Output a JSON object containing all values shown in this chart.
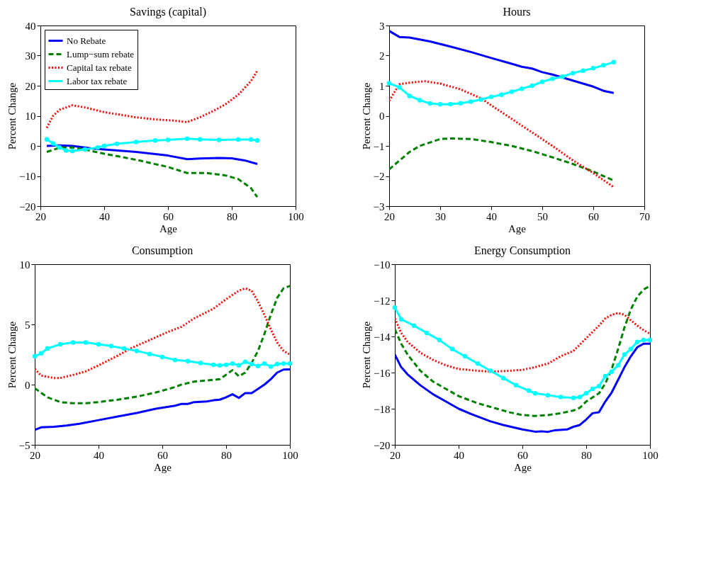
{
  "chart_data": [
    {
      "type": "line",
      "title": "Savings (capital)",
      "xlabel": "Age",
      "ylabel": "Percent Change",
      "xlim": [
        20,
        100
      ],
      "xticks": [
        20,
        40,
        60,
        80,
        100
      ],
      "ylim": [
        -20,
        40
      ],
      "yticks": [
        -20,
        -10,
        0,
        10,
        20,
        30,
        40
      ],
      "grid": false,
      "legend": "top left",
      "series": [
        {
          "name": "No Rebate",
          "color": "#0000ff",
          "line_style": "solid",
          "marker": "none",
          "x": [
            22,
            26,
            30,
            36,
            40,
            50,
            60,
            66,
            70,
            76,
            80,
            84,
            88
          ],
          "values": [
            0,
            0.2,
            0,
            -0.8,
            -1.2,
            -2,
            -3.2,
            -4.4,
            -4.2,
            -4,
            -4.1,
            -4.8,
            -6
          ]
        },
        {
          "name": "Lump−sum rebate",
          "color": "#008000",
          "line_style": "dashed",
          "marker": "none",
          "x": [
            22,
            26,
            30,
            34,
            40,
            50,
            60,
            66,
            72,
            78,
            82,
            86,
            88
          ],
          "values": [
            -2,
            -0.6,
            -0.5,
            -1.2,
            -2.6,
            -4.6,
            -7,
            -9,
            -9,
            -9.8,
            -11,
            -14,
            -17
          ]
        },
        {
          "name": "Capital tax rebate",
          "color": "#ff0000",
          "line_style": "dotted",
          "marker": "none",
          "x": [
            22,
            24,
            26,
            30,
            34,
            40,
            46,
            50,
            56,
            62,
            66,
            70,
            74,
            78,
            82,
            86,
            88
          ],
          "values": [
            6,
            10,
            12,
            13.5,
            12.8,
            11.2,
            10.2,
            9.5,
            8.8,
            8.4,
            7.9,
            9.5,
            11.5,
            13.8,
            17,
            21.5,
            25
          ]
        },
        {
          "name": "Labor tax rebate",
          "color": "#00ffff",
          "line_style": "solid",
          "marker": "circle",
          "x": [
            22,
            24,
            26,
            28,
            30,
            34,
            38,
            40,
            44,
            50,
            56,
            60,
            66,
            70,
            76,
            82,
            86,
            88
          ],
          "values": [
            2.2,
            0.8,
            -0.5,
            -1.5,
            -1.7,
            -1.2,
            -0.5,
            0,
            0.7,
            1.3,
            1.8,
            2,
            2.4,
            2.2,
            2,
            2.1,
            2.1,
            1.8
          ]
        }
      ]
    },
    {
      "type": "line",
      "title": "Hours",
      "xlabel": "Age",
      "ylabel": "Percent Change",
      "xlim": [
        20,
        70
      ],
      "xticks": [
        20,
        30,
        40,
        50,
        60,
        70
      ],
      "ylim": [
        -3,
        3
      ],
      "yticks": [
        -3,
        -2,
        -1,
        0,
        1,
        2,
        3
      ],
      "grid": false,
      "legend": false,
      "series": [
        {
          "color": "#0000ff",
          "line_style": "solid",
          "marker": "none",
          "x": [
            20,
            22,
            24,
            28,
            32,
            36,
            40,
            44,
            46,
            48,
            50,
            52,
            54,
            56,
            60,
            62,
            64
          ],
          "values": [
            2.82,
            2.62,
            2.6,
            2.47,
            2.3,
            2.12,
            1.92,
            1.73,
            1.63,
            1.57,
            1.45,
            1.37,
            1.27,
            1.17,
            0.97,
            0.83,
            0.76
          ]
        },
        {
          "color": "#008000",
          "line_style": "dashed",
          "marker": "none",
          "x": [
            20,
            24,
            26,
            30,
            32,
            36,
            40,
            44,
            48,
            52,
            56,
            60,
            64
          ],
          "values": [
            -1.78,
            -1.2,
            -1,
            -0.77,
            -0.75,
            -0.77,
            -0.87,
            -1,
            -1.17,
            -1.38,
            -1.6,
            -1.85,
            -2.15
          ]
        },
        {
          "color": "#ff0000",
          "line_style": "dotted",
          "marker": "none",
          "x": [
            20,
            22,
            24,
            27,
            30,
            34,
            38,
            40,
            44,
            48,
            52,
            56,
            60,
            64
          ],
          "values": [
            0.5,
            1.05,
            1.1,
            1.15,
            1.07,
            0.88,
            0.58,
            0.35,
            -0.1,
            -0.55,
            -1,
            -1.48,
            -1.9,
            -2.37
          ]
        },
        {
          "color": "#00ffff",
          "line_style": "solid",
          "marker": "circle",
          "x": [
            20,
            22,
            24,
            26,
            28,
            30,
            32,
            34,
            36,
            38,
            40,
            42,
            44,
            46,
            48,
            50,
            52,
            54,
            56,
            58,
            60,
            62,
            64
          ],
          "values": [
            1.08,
            0.95,
            0.66,
            0.52,
            0.41,
            0.38,
            0.39,
            0.42,
            0.47,
            0.54,
            0.63,
            0.7,
            0.8,
            0.9,
            1,
            1.13,
            1.23,
            1.3,
            1.42,
            1.5,
            1.58,
            1.68,
            1.78
          ]
        }
      ]
    },
    {
      "type": "line",
      "title": "Consumption",
      "xlabel": "Age",
      "ylabel": "Percent Change",
      "xlim": [
        20,
        100
      ],
      "xticks": [
        20,
        40,
        60,
        80,
        100
      ],
      "ylim": [
        -5,
        10
      ],
      "yticks": [
        -5,
        0,
        5,
        10
      ],
      "grid": false,
      "legend": false,
      "series": [
        {
          "color": "#0000ff",
          "line_style": "solid",
          "marker": "none",
          "x": [
            20,
            22,
            26,
            30,
            34,
            40,
            46,
            52,
            58,
            64,
            66,
            68,
            70,
            74,
            76,
            78,
            80,
            82,
            84,
            86,
            88,
            90,
            92,
            94,
            96,
            98,
            100
          ],
          "values": [
            -3.75,
            -3.55,
            -3.5,
            -3.4,
            -3.25,
            -2.95,
            -2.65,
            -2.35,
            -2,
            -1.75,
            -1.6,
            -1.6,
            -1.45,
            -1.4,
            -1.3,
            -1.25,
            -1.05,
            -0.8,
            -1.1,
            -0.7,
            -0.7,
            -0.35,
            0,
            0.45,
            1,
            1.25,
            1.27
          ]
        },
        {
          "color": "#008000",
          "line_style": "dashed",
          "marker": "none",
          "x": [
            20,
            24,
            28,
            32,
            36,
            40,
            46,
            52,
            58,
            64,
            66,
            70,
            78,
            82,
            84,
            86,
            88,
            90,
            92,
            94,
            96,
            98,
            100
          ],
          "values": [
            -0.3,
            -1.05,
            -1.45,
            -1.55,
            -1.55,
            -1.45,
            -1.25,
            -1,
            -0.65,
            -0.2,
            0,
            0.25,
            0.45,
            1.2,
            0.7,
            1,
            1.8,
            2.8,
            4.2,
            5.8,
            7.2,
            8,
            8.2
          ]
        },
        {
          "color": "#ff0000",
          "line_style": "dotted",
          "marker": "none",
          "x": [
            20,
            22,
            26,
            28,
            32,
            36,
            40,
            46,
            50,
            56,
            62,
            66,
            70,
            76,
            80,
            84,
            86,
            88,
            90,
            92,
            94,
            96,
            98,
            100
          ],
          "values": [
            1.3,
            0.75,
            0.55,
            0.55,
            0.8,
            1.1,
            1.6,
            2.4,
            3,
            3.7,
            4.4,
            4.8,
            5.5,
            6.3,
            7.1,
            7.8,
            8,
            7.8,
            6.9,
            5.8,
            4.6,
            3.5,
            2.8,
            2.5
          ]
        },
        {
          "color": "#00ffff",
          "line_style": "solid",
          "marker": "circle",
          "x": [
            20,
            22,
            24,
            28,
            32,
            36,
            40,
            44,
            48,
            52,
            56,
            60,
            64,
            68,
            72,
            76,
            78,
            80,
            82,
            84,
            86,
            88,
            90,
            92,
            94,
            96,
            98,
            100
          ],
          "values": [
            2.35,
            2.6,
            3,
            3.35,
            3.5,
            3.5,
            3.35,
            3.2,
            3,
            2.8,
            2.55,
            2.3,
            2.05,
            1.95,
            1.8,
            1.65,
            1.6,
            1.65,
            1.75,
            1.6,
            1.9,
            1.7,
            1.55,
            1.75,
            1.5,
            1.7,
            1.75,
            1.75
          ]
        }
      ]
    },
    {
      "type": "line",
      "title": "Energy Consumption",
      "xlabel": "Age",
      "ylabel": "Percent Change",
      "xlim": [
        20,
        100
      ],
      "xticks": [
        20,
        40,
        60,
        80,
        100
      ],
      "ylim": [
        -20,
        -10
      ],
      "yticks": [
        -20,
        -18,
        -16,
        -14,
        -12,
        -10
      ],
      "grid": false,
      "legend": false,
      "series": [
        {
          "color": "#0000ff",
          "line_style": "solid",
          "marker": "none",
          "x": [
            20,
            22,
            24,
            28,
            32,
            36,
            40,
            44,
            50,
            54,
            60,
            64,
            66,
            68,
            70,
            74,
            76,
            78,
            80,
            82,
            84,
            86,
            88,
            90,
            92,
            94,
            96,
            98,
            100
          ],
          "values": [
            -15,
            -15.7,
            -16.1,
            -16.7,
            -17.2,
            -17.6,
            -18,
            -18.3,
            -18.7,
            -18.9,
            -19.15,
            -19.27,
            -19.25,
            -19.28,
            -19.2,
            -19.15,
            -19,
            -18.9,
            -18.6,
            -18.25,
            -18.2,
            -17.6,
            -17.1,
            -16.4,
            -15.7,
            -15.1,
            -14.6,
            -14.4,
            -14.4
          ]
        },
        {
          "color": "#008000",
          "line_style": "dashed",
          "marker": "none",
          "x": [
            20,
            22,
            24,
            28,
            32,
            36,
            40,
            46,
            52,
            56,
            60,
            64,
            68,
            72,
            76,
            78,
            80,
            84,
            86,
            88,
            90,
            92,
            94,
            96,
            98,
            100
          ],
          "values": [
            -13.6,
            -14.4,
            -15,
            -15.9,
            -16.5,
            -16.9,
            -17.3,
            -17.7,
            -18,
            -18.2,
            -18.35,
            -18.4,
            -18.35,
            -18.25,
            -18.1,
            -17.95,
            -17.6,
            -17.15,
            -16.6,
            -15.8,
            -14.7,
            -13.5,
            -12.5,
            -11.8,
            -11.4,
            -11.2
          ]
        },
        {
          "color": "#ff0000",
          "line_style": "dotted",
          "marker": "none",
          "x": [
            20,
            22,
            24,
            28,
            32,
            36,
            40,
            46,
            50,
            56,
            60,
            64,
            68,
            72,
            76,
            80,
            84,
            86,
            88,
            90,
            92,
            94,
            96,
            98,
            100
          ],
          "values": [
            -13,
            -13.8,
            -14.3,
            -14.9,
            -15.3,
            -15.6,
            -15.8,
            -15.9,
            -15.95,
            -15.9,
            -15.85,
            -15.7,
            -15.5,
            -15.1,
            -14.8,
            -14.1,
            -13.4,
            -13,
            -12.8,
            -12.7,
            -12.8,
            -13.1,
            -13.4,
            -13.65,
            -13.85
          ]
        },
        {
          "color": "#00ffff",
          "line_style": "solid",
          "marker": "circle",
          "x": [
            20,
            22,
            26,
            30,
            34,
            38,
            42,
            46,
            50,
            54,
            58,
            62,
            64,
            68,
            72,
            76,
            78,
            80,
            82,
            84,
            86,
            88,
            90,
            92,
            94,
            96,
            98,
            100
          ],
          "values": [
            -12.4,
            -13.05,
            -13.4,
            -13.8,
            -14.2,
            -14.7,
            -15.1,
            -15.5,
            -15.9,
            -16.3,
            -16.7,
            -17,
            -17.15,
            -17.25,
            -17.35,
            -17.4,
            -17.35,
            -17.15,
            -16.9,
            -16.75,
            -16.2,
            -15.95,
            -15.6,
            -15,
            -14.7,
            -14.3,
            -14.2,
            -14.2
          ]
        }
      ]
    }
  ]
}
